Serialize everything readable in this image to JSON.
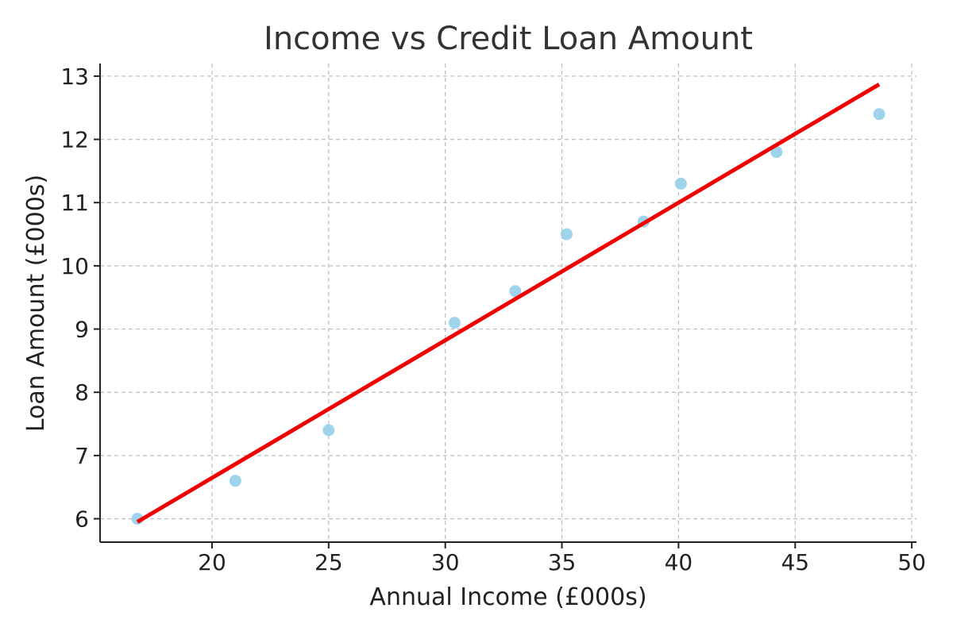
{
  "chart_data": {
    "type": "scatter",
    "title": "Income vs Credit Loan Amount",
    "xlabel": "Annual Income (£000s)",
    "ylabel": "Loan Amount (£000s)",
    "xlim": [
      15.2,
      50.2
    ],
    "ylim": [
      5.63,
      13.2
    ],
    "xticks": [
      20,
      25,
      30,
      35,
      40,
      45,
      50
    ],
    "yticks": [
      6,
      7,
      8,
      9,
      10,
      11,
      12,
      13
    ],
    "grid": true,
    "series": [
      {
        "type": "scatter",
        "color": "#9fd3ec",
        "points": [
          {
            "x": 16.8,
            "y": 6.0
          },
          {
            "x": 21.0,
            "y": 6.6
          },
          {
            "x": 25.0,
            "y": 7.4
          },
          {
            "x": 30.4,
            "y": 9.1
          },
          {
            "x": 33.0,
            "y": 9.6
          },
          {
            "x": 35.2,
            "y": 10.5
          },
          {
            "x": 38.5,
            "y": 10.7
          },
          {
            "x": 40.1,
            "y": 11.3
          },
          {
            "x": 44.2,
            "y": 11.8
          },
          {
            "x": 48.6,
            "y": 12.4
          }
        ]
      },
      {
        "type": "line",
        "color": "#f00000",
        "points": [
          {
            "x": 16.8,
            "y": 5.95
          },
          {
            "x": 48.6,
            "y": 12.87
          }
        ]
      }
    ]
  }
}
